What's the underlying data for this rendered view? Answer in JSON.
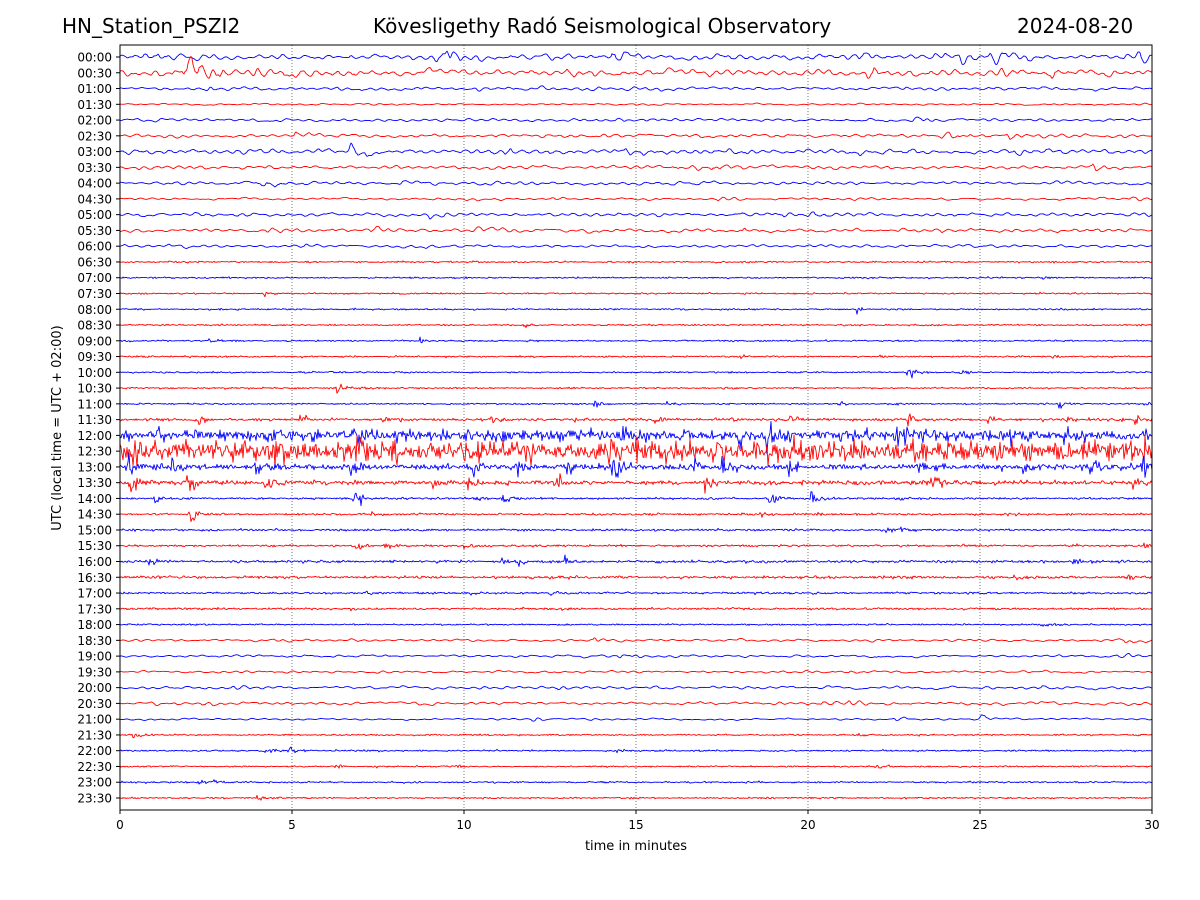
{
  "header": {
    "station": "HN_Station_PSZI2",
    "observatory": "Kövesligethy Radó Seismological Observatory",
    "date": "2024-08-20"
  },
  "chart_data": {
    "type": "line",
    "title": "Kövesligethy Radó Seismological Observatory",
    "xlabel": "time in minutes",
    "ylabel": "UTC (local time = UTC + 02:00)",
    "xlim": [
      0,
      30
    ],
    "xticks": [
      "0",
      "5",
      "10",
      "15",
      "20",
      "25",
      "30"
    ],
    "xtick_values": [
      0,
      5,
      10,
      15,
      20,
      25,
      30
    ],
    "grid": "vertical dotted at x ticks",
    "colors": {
      "even_rows": "#0000ff",
      "odd_rows": "#ff0000"
    },
    "rows": [
      {
        "label": "00:00",
        "noise": 0.55,
        "period": "long",
        "events": [
          [
            0.7,
            1.2
          ],
          [
            1.1,
            0.8
          ],
          [
            9.1,
            1.5
          ],
          [
            9.5,
            1.3
          ],
          [
            14.3,
            1.4
          ],
          [
            21.4,
            0.6
          ],
          [
            23.7,
            0.8
          ],
          [
            24.4,
            0.9
          ],
          [
            25.3,
            0.7
          ],
          [
            26.3,
            0.9
          ],
          [
            29.2,
            0.9
          ],
          [
            29.6,
            1.0
          ]
        ]
      },
      {
        "label": "00:30",
        "noise": 0.65,
        "period": "long",
        "events": [
          [
            1.8,
            1.6
          ],
          [
            2.0,
            2.0
          ],
          [
            2.6,
            1.0
          ],
          [
            3.9,
            1.0
          ],
          [
            4.8,
            0.9
          ],
          [
            13.0,
            0.7
          ],
          [
            21.7,
            0.8
          ],
          [
            23.2,
            0.7
          ],
          [
            25.6,
            0.8
          ],
          [
            27.1,
            0.8
          ]
        ]
      },
      {
        "label": "01:00",
        "noise": 0.35,
        "period": "long",
        "events": [
          [
            2.5,
            0.5
          ],
          [
            6.3,
            0.4
          ],
          [
            10.4,
            0.4
          ]
        ]
      },
      {
        "label": "01:30",
        "noise": 0.18,
        "period": "long",
        "events": [
          [
            15.5,
            0.3
          ],
          [
            29.5,
            0.4
          ]
        ]
      },
      {
        "label": "02:00",
        "noise": 0.3,
        "period": "long",
        "events": [
          [
            21.4,
            0.6
          ],
          [
            23.0,
            0.5
          ],
          [
            29.2,
            0.5
          ]
        ]
      },
      {
        "label": "02:30",
        "noise": 0.35,
        "period": "long",
        "events": [
          [
            5.1,
            0.7
          ],
          [
            23.8,
            1.1
          ],
          [
            25.8,
            0.7
          ]
        ]
      },
      {
        "label": "03:00",
        "noise": 0.5,
        "period": "long",
        "events": [
          [
            4.1,
            0.7
          ],
          [
            6.7,
            0.8
          ],
          [
            11.2,
            0.6
          ],
          [
            14.7,
            0.7
          ],
          [
            17.4,
            0.6
          ],
          [
            21.5,
            0.6
          ],
          [
            26.0,
            0.7
          ]
        ]
      },
      {
        "label": "03:30",
        "noise": 0.35,
        "period": "long",
        "events": [
          [
            16.1,
            1.2
          ],
          [
            17.2,
            0.6
          ],
          [
            28.3,
            0.6
          ]
        ]
      },
      {
        "label": "04:00",
        "noise": 0.35,
        "period": "long",
        "events": [
          [
            4.0,
            0.9
          ],
          [
            4.2,
            0.6
          ],
          [
            8.1,
            0.4
          ]
        ]
      },
      {
        "label": "04:30",
        "noise": 0.25,
        "period": "long",
        "events": [
          [
            17.4,
            0.6
          ],
          [
            29.3,
            0.5
          ]
        ]
      },
      {
        "label": "05:00",
        "noise": 0.35,
        "period": "long",
        "events": [
          [
            9.0,
            0.4
          ],
          [
            18.0,
            0.7
          ],
          [
            19.0,
            0.7
          ],
          [
            20.0,
            0.5
          ],
          [
            29.5,
            0.5
          ]
        ]
      },
      {
        "label": "05:30",
        "noise": 0.4,
        "period": "long",
        "events": [
          [
            4.3,
            0.5
          ],
          [
            7.3,
            0.6
          ],
          [
            10.3,
            0.5
          ],
          [
            16.8,
            0.5
          ],
          [
            18.1,
            0.7
          ],
          [
            23.9,
            0.5
          ]
        ]
      },
      {
        "label": "06:00",
        "noise": 0.3,
        "period": "long",
        "events": [
          [
            1.3,
            0.4
          ],
          [
            5.0,
            0.4
          ],
          [
            8.7,
            0.4
          ]
        ]
      },
      {
        "label": "06:30",
        "noise": 0.15,
        "period": "short",
        "events": []
      },
      {
        "label": "07:00",
        "noise": 0.15,
        "period": "short",
        "events": [
          [
            26.8,
            0.4
          ]
        ]
      },
      {
        "label": "07:30",
        "noise": 0.15,
        "period": "short",
        "events": [
          [
            4.2,
            0.6
          ]
        ]
      },
      {
        "label": "08:00",
        "noise": 0.15,
        "period": "short",
        "events": [
          [
            21.4,
            0.6
          ]
        ]
      },
      {
        "label": "08:30",
        "noise": 0.15,
        "period": "short",
        "events": [
          [
            11.7,
            0.4
          ]
        ]
      },
      {
        "label": "09:00",
        "noise": 0.15,
        "period": "short",
        "events": [
          [
            2.6,
            0.4
          ],
          [
            8.7,
            0.5
          ]
        ]
      },
      {
        "label": "09:30",
        "noise": 0.15,
        "period": "short",
        "events": [
          [
            18.0,
            0.6
          ],
          [
            22.1,
            0.5
          ],
          [
            27.1,
            0.4
          ]
        ]
      },
      {
        "label": "10:00",
        "noise": 0.15,
        "period": "short",
        "events": [
          [
            22.9,
            1.3
          ],
          [
            24.4,
            0.8
          ]
        ]
      },
      {
        "label": "10:30",
        "noise": 0.15,
        "period": "short",
        "events": [
          [
            6.3,
            1.0
          ],
          [
            7.0,
            0.4
          ]
        ]
      },
      {
        "label": "11:00",
        "noise": 0.15,
        "period": "short",
        "events": [
          [
            13.8,
            0.6
          ],
          [
            15.9,
            0.4
          ],
          [
            20.9,
            0.5
          ],
          [
            27.3,
            0.6
          ],
          [
            29.8,
            0.5
          ]
        ]
      },
      {
        "label": "11:30",
        "noise": 0.25,
        "period": "short",
        "events": [
          [
            2.2,
            1.6
          ],
          [
            5.2,
            1.3
          ],
          [
            7.6,
            1.0
          ],
          [
            10.8,
            1.1
          ],
          [
            13.2,
            1.1
          ],
          [
            15.5,
            1.4
          ],
          [
            17.8,
            1.1
          ],
          [
            19.5,
            1.0
          ],
          [
            22.9,
            1.7
          ],
          [
            25.2,
            1.2
          ],
          [
            27.5,
            1.0
          ],
          [
            29.5,
            1.1
          ]
        ]
      },
      {
        "label": "12:00",
        "noise": 1.1,
        "period": "short",
        "events": [
          [
            1.0,
            1.6
          ],
          [
            4.3,
            1.2
          ],
          [
            6.8,
            1.8
          ],
          [
            11.0,
            1.6
          ],
          [
            14.6,
            1.8
          ],
          [
            18.0,
            2.4
          ],
          [
            18.8,
            2.0
          ],
          [
            22.6,
            1.6
          ],
          [
            25.8,
            1.6
          ]
        ]
      },
      {
        "label": "12:30",
        "noise": 2.0,
        "period": "short",
        "events": [
          [
            0.3,
            2.2
          ],
          [
            4.5,
            1.8
          ],
          [
            6.9,
            2.6
          ],
          [
            14.2,
            2.0
          ],
          [
            15.0,
            2.4
          ],
          [
            17.2,
            2.0
          ],
          [
            20.3,
            1.6
          ],
          [
            29.8,
            2.0
          ]
        ]
      },
      {
        "label": "13:00",
        "noise": 0.55,
        "period": "short",
        "events": [
          [
            0.2,
            2.8
          ],
          [
            1.5,
            2.0
          ],
          [
            3.9,
            1.8
          ],
          [
            6.7,
            2.6
          ],
          [
            10.2,
            1.6
          ],
          [
            11.5,
            2.6
          ],
          [
            12.9,
            2.2
          ],
          [
            14.3,
            2.6
          ],
          [
            16.6,
            2.2
          ],
          [
            17.5,
            3.0
          ],
          [
            19.4,
            2.2
          ],
          [
            23.2,
            1.8
          ],
          [
            26.2,
            1.8
          ],
          [
            28.2,
            1.8
          ],
          [
            29.7,
            1.8
          ]
        ]
      },
      {
        "label": "13:30",
        "noise": 0.4,
        "period": "short",
        "events": [
          [
            0.3,
            2.2
          ],
          [
            1.9,
            2.6
          ],
          [
            4.2,
            1.8
          ],
          [
            9.1,
            1.4
          ],
          [
            10.1,
            2.0
          ],
          [
            12.6,
            2.2
          ],
          [
            17.0,
            1.6
          ],
          [
            23.6,
            2.0
          ],
          [
            29.4,
            1.4
          ]
        ]
      },
      {
        "label": "14:00",
        "noise": 0.2,
        "period": "short",
        "events": [
          [
            1.0,
            1.0
          ],
          [
            6.8,
            2.0
          ],
          [
            10.3,
            0.6
          ],
          [
            11.1,
            1.0
          ],
          [
            18.9,
            2.2
          ],
          [
            20.1,
            2.2
          ],
          [
            22.6,
            0.5
          ]
        ]
      },
      {
        "label": "14:30",
        "noise": 0.2,
        "period": "short",
        "events": [
          [
            2.0,
            2.4
          ],
          [
            7.3,
            0.5
          ],
          [
            18.6,
            0.6
          ],
          [
            20.3,
            0.4
          ],
          [
            25.8,
            0.4
          ]
        ]
      },
      {
        "label": "15:00",
        "noise": 0.2,
        "period": "short",
        "events": [
          [
            22.3,
            1.0
          ],
          [
            22.7,
            0.8
          ]
        ]
      },
      {
        "label": "15:30",
        "noise": 0.2,
        "period": "short",
        "events": [
          [
            6.8,
            1.2
          ],
          [
            7.7,
            0.6
          ],
          [
            10.0,
            0.5
          ],
          [
            29.8,
            0.7
          ]
        ]
      },
      {
        "label": "16:00",
        "noise": 0.25,
        "period": "short",
        "events": [
          [
            0.8,
            1.0
          ],
          [
            11.0,
            1.0
          ],
          [
            11.6,
            0.9
          ],
          [
            12.9,
            0.9
          ],
          [
            27.7,
            1.2
          ]
        ]
      },
      {
        "label": "16:30",
        "noise": 0.25,
        "period": "short",
        "events": [
          [
            12.0,
            0.6
          ],
          [
            12.5,
            0.7
          ],
          [
            26.0,
            0.4
          ],
          [
            29.3,
            0.6
          ]
        ]
      },
      {
        "label": "17:00",
        "noise": 0.2,
        "period": "short",
        "events": [
          [
            7.1,
            0.5
          ],
          [
            10.2,
            0.4
          ],
          [
            12.5,
            0.5
          ]
        ]
      },
      {
        "label": "17:30",
        "noise": 0.2,
        "period": "short",
        "events": [
          [
            22.0,
            0.3
          ]
        ]
      },
      {
        "label": "18:00",
        "noise": 0.15,
        "period": "short",
        "events": [
          [
            26.8,
            0.7
          ]
        ]
      },
      {
        "label": "18:30",
        "noise": 0.25,
        "period": "long",
        "events": [
          [
            4.5,
            0.5
          ],
          [
            13.8,
            0.6
          ],
          [
            29.2,
            0.5
          ]
        ]
      },
      {
        "label": "19:00",
        "noise": 0.25,
        "period": "long",
        "events": [
          [
            14.5,
            0.4
          ],
          [
            22.0,
            0.4
          ],
          [
            29.0,
            0.5
          ]
        ]
      },
      {
        "label": "19:30",
        "noise": 0.25,
        "period": "long",
        "events": [
          [
            21.2,
            0.6
          ]
        ]
      },
      {
        "label": "20:00",
        "noise": 0.3,
        "period": "long",
        "events": [
          [
            3.2,
            0.4
          ],
          [
            12.6,
            0.7
          ],
          [
            26.7,
            0.4
          ]
        ]
      },
      {
        "label": "20:30",
        "noise": 0.3,
        "period": "long",
        "events": [
          [
            2.4,
            0.5
          ],
          [
            20.4,
            0.9
          ],
          [
            21.2,
            0.5
          ]
        ]
      },
      {
        "label": "21:00",
        "noise": 0.2,
        "period": "long",
        "events": [
          [
            12.0,
            0.6
          ],
          [
            22.5,
            0.6
          ],
          [
            25.0,
            0.4
          ]
        ]
      },
      {
        "label": "21:30",
        "noise": 0.15,
        "period": "short",
        "events": [
          [
            0.4,
            0.8
          ],
          [
            21.5,
            0.4
          ]
        ]
      },
      {
        "label": "22:00",
        "noise": 0.15,
        "period": "short",
        "events": [
          [
            4.2,
            0.6
          ],
          [
            4.9,
            0.6
          ],
          [
            14.4,
            0.4
          ]
        ]
      },
      {
        "label": "22:30",
        "noise": 0.15,
        "period": "short",
        "events": [
          [
            6.2,
            0.4
          ],
          [
            9.7,
            0.6
          ],
          [
            22.0,
            0.7
          ]
        ]
      },
      {
        "label": "23:00",
        "noise": 0.15,
        "period": "short",
        "events": [
          [
            2.3,
            0.7
          ],
          [
            2.7,
            0.6
          ]
        ]
      },
      {
        "label": "23:30",
        "noise": 0.15,
        "period": "short",
        "events": [
          [
            4.0,
            0.5
          ]
        ]
      }
    ]
  }
}
